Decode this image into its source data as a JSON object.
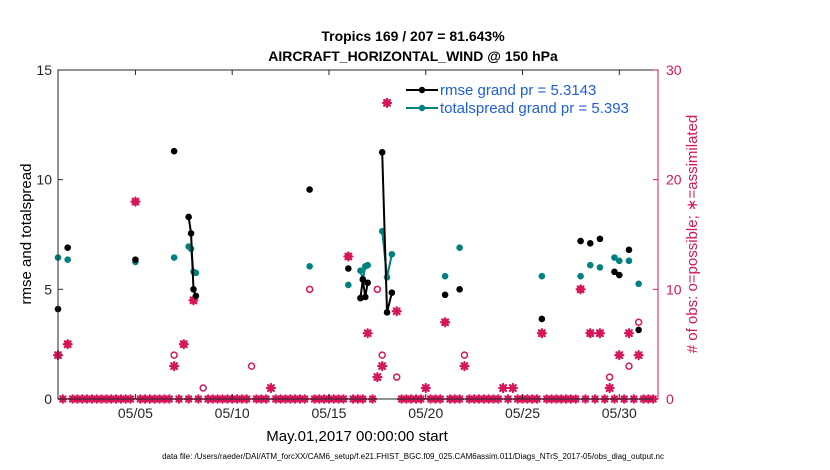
{
  "chart_data": {
    "type": "line",
    "title_line1": "Tropics 169 / 207 = 81.643%",
    "title_line2": "AIRCRAFT_HORIZONTAL_WIND @ 150 hPa",
    "xlabel": "May.01,2017 00:00:00 start",
    "ylabel_left": "rmse and totalspread",
    "ylabel_right": "# of obs: o=possible; ∗=assimilated",
    "footer": "data file: /Users/raeder/DAI/ATM_forcXX/CAM6_setup/f.e21.FHIST_BGC.f09_025.CAM6assim.011/Diags_NTrS_2017-05/obs_diag_output.nc",
    "xlim": [
      1,
      32
    ],
    "ylim_left": [
      0,
      15
    ],
    "ylim_right": [
      0,
      30
    ],
    "x_ticks": [
      {
        "x": 5,
        "label": "05/05"
      },
      {
        "x": 10,
        "label": "05/10"
      },
      {
        "x": 15,
        "label": "05/15"
      },
      {
        "x": 20,
        "label": "05/20"
      },
      {
        "x": 25,
        "label": "05/25"
      },
      {
        "x": 30,
        "label": "05/30"
      }
    ],
    "y_ticks_left": [
      "0",
      "5",
      "10",
      "15"
    ],
    "y_ticks_right": [
      "0",
      "10",
      "20",
      "30"
    ],
    "colors": {
      "rmse": "#000000",
      "spread": "#00807f",
      "obs": "#d5165a",
      "legend_text": "#1f5fd6"
    },
    "series": [
      {
        "name": "rmse grand pr = 5.3143",
        "values": [
          [
            [
              1.0,
              4.1
            ]
          ],
          [
            [
              1.5,
              6.9
            ]
          ],
          [
            [
              5.0,
              6.35
            ]
          ],
          [
            [
              7.0,
              11.3
            ]
          ],
          [
            [
              7.75,
              8.3
            ],
            [
              7.875,
              7.55
            ],
            [
              8.0,
              5.0
            ],
            [
              8.125,
              4.7
            ]
          ],
          [
            [
              14.0,
              9.55
            ]
          ],
          [
            [
              16.0,
              5.95
            ]
          ],
          [
            [
              16.625,
              4.6
            ],
            [
              16.75,
              5.45
            ],
            [
              16.875,
              4.65
            ],
            [
              17.0,
              5.3
            ]
          ],
          [
            [
              17.75,
              11.25
            ],
            [
              18.0,
              3.95
            ],
            [
              18.25,
              4.85
            ]
          ],
          [
            [
              21.0,
              4.75
            ]
          ],
          [
            [
              21.75,
              5.0
            ]
          ],
          [
            [
              26.0,
              3.65
            ]
          ],
          [
            [
              28.0,
              7.2
            ]
          ],
          [
            [
              28.5,
              7.1
            ]
          ],
          [
            [
              29.0,
              7.3
            ]
          ],
          [
            [
              29.75,
              5.8
            ],
            [
              30.0,
              5.65
            ]
          ],
          [
            [
              30.5,
              6.8
            ]
          ],
          [
            [
              31.0,
              3.15
            ]
          ]
        ]
      },
      {
        "name": "totalspread grand pr = 5.393",
        "values": [
          [
            [
              1.0,
              6.45
            ]
          ],
          [
            [
              1.5,
              6.35
            ]
          ],
          [
            [
              5.0,
              6.25
            ]
          ],
          [
            [
              7.0,
              6.45
            ]
          ],
          [
            [
              7.75,
              6.95
            ],
            [
              7.875,
              6.85
            ],
            [
              8.0,
              5.8
            ],
            [
              8.125,
              5.75
            ]
          ],
          [
            [
              14.0,
              6.05
            ]
          ],
          [
            [
              16.0,
              5.2
            ]
          ],
          [
            [
              16.625,
              5.85
            ],
            [
              16.75,
              5.45
            ],
            [
              16.875,
              6.05
            ],
            [
              17.0,
              6.1
            ]
          ],
          [
            [
              17.75,
              7.65
            ],
            [
              18.0,
              5.55
            ],
            [
              18.25,
              6.6
            ]
          ],
          [
            [
              21.0,
              5.6
            ]
          ],
          [
            [
              21.75,
              6.9
            ]
          ],
          [
            [
              26.0,
              5.6
            ]
          ],
          [
            [
              28.0,
              5.6
            ]
          ],
          [
            [
              28.5,
              6.1
            ]
          ],
          [
            [
              29.0,
              6.0
            ]
          ],
          [
            [
              29.75,
              6.45
            ],
            [
              30.0,
              6.3
            ]
          ],
          [
            [
              30.5,
              6.3
            ]
          ],
          [
            [
              31.0,
              5.25
            ]
          ]
        ]
      }
    ],
    "possible": [
      [
        1.0,
        4
      ],
      [
        1.5,
        5
      ],
      [
        5.0,
        18
      ],
      [
        7.0,
        4
      ],
      [
        7.5,
        5
      ],
      [
        8.0,
        9
      ],
      [
        8.5,
        1
      ],
      [
        11.0,
        3
      ],
      [
        14.0,
        10
      ],
      [
        16.0,
        13
      ],
      [
        17.5,
        10
      ],
      [
        17.75,
        4
      ],
      [
        18.0,
        27
      ],
      [
        18.5,
        2
      ],
      [
        21.0,
        7
      ],
      [
        22.0,
        4
      ],
      [
        26.0,
        6
      ],
      [
        28.0,
        10
      ],
      [
        28.5,
        6
      ],
      [
        29.0,
        6
      ],
      [
        29.5,
        2
      ],
      [
        30.5,
        3
      ],
      [
        31.0,
        7
      ]
    ],
    "assimilated": [
      [
        1.0,
        4
      ],
      [
        1.5,
        5
      ],
      [
        5.0,
        18
      ],
      [
        7.0,
        3
      ],
      [
        7.5,
        5
      ],
      [
        8.0,
        9
      ],
      [
        12.0,
        1
      ],
      [
        16.0,
        13
      ],
      [
        17.0,
        6
      ],
      [
        17.5,
        2
      ],
      [
        17.75,
        3
      ],
      [
        18.0,
        27
      ],
      [
        18.5,
        8
      ],
      [
        20.0,
        1
      ],
      [
        21.0,
        7
      ],
      [
        22.0,
        3
      ],
      [
        24.0,
        1
      ],
      [
        24.5,
        1
      ],
      [
        26.0,
        6
      ],
      [
        28.0,
        10
      ],
      [
        28.5,
        6
      ],
      [
        29.0,
        6
      ],
      [
        29.5,
        1
      ],
      [
        30.0,
        4
      ],
      [
        30.5,
        6
      ],
      [
        31.0,
        4
      ]
    ],
    "zero_count_days": [
      1.25,
      1.75,
      2.0,
      2.25,
      2.5,
      2.75,
      3.0,
      3.25,
      3.5,
      3.75,
      4.0,
      4.25,
      4.5,
      4.75,
      5.25,
      5.5,
      5.75,
      6.0,
      6.25,
      6.5,
      6.75,
      7.25,
      7.75,
      8.25,
      8.75,
      9.0,
      9.25,
      9.5,
      9.75,
      10.0,
      10.25,
      10.5,
      10.75,
      11.25,
      11.5,
      11.75,
      12.25,
      12.5,
      12.75,
      13.0,
      13.25,
      13.5,
      13.75,
      14.25,
      14.5,
      14.75,
      15.0,
      15.25,
      15.5,
      15.75,
      16.25,
      16.5,
      16.75,
      17.25,
      18.75,
      19.0,
      19.25,
      19.5,
      19.75,
      20.25,
      20.5,
      20.75,
      21.25,
      21.5,
      21.75,
      22.25,
      22.5,
      22.75,
      23.0,
      23.25,
      23.5,
      23.75,
      24.25,
      24.75,
      25.0,
      25.25,
      25.5,
      25.75,
      26.25,
      26.5,
      26.75,
      27.0,
      27.25,
      27.5,
      27.75,
      28.25,
      28.75,
      29.25,
      29.75,
      30.25,
      30.75,
      31.25,
      31.5,
      31.75
    ]
  }
}
